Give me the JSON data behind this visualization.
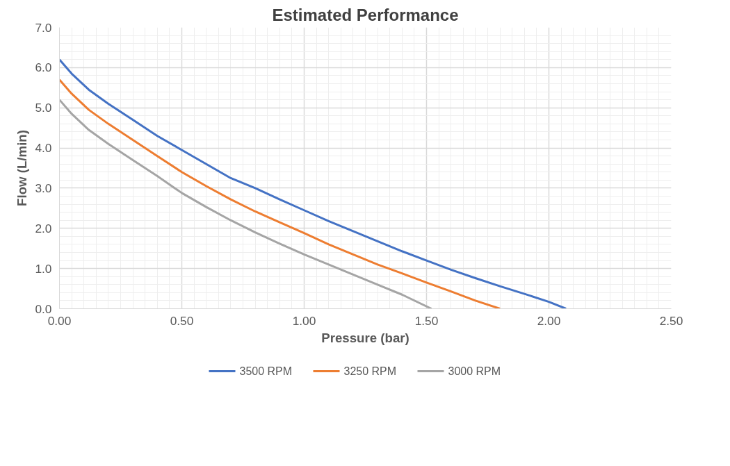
{
  "chart_data": {
    "type": "line",
    "title": "Estimated Performance",
    "xlabel": "Pressure (bar)",
    "ylabel": "Flow (L/min)",
    "xlim": [
      0,
      2.5
    ],
    "xticks": [
      {
        "value": 0,
        "label": "0.00"
      },
      {
        "value": 0.5,
        "label": "0.50"
      },
      {
        "value": 1,
        "label": "1.00"
      },
      {
        "value": 1.5,
        "label": "1.50"
      },
      {
        "value": 2,
        "label": "2.00"
      },
      {
        "value": 2.5,
        "label": "2.50"
      }
    ],
    "ylim": [
      0,
      7
    ],
    "yticks": [
      {
        "value": 0,
        "label": "0.0"
      },
      {
        "value": 1,
        "label": "1.0"
      },
      {
        "value": 2,
        "label": "2.0"
      },
      {
        "value": 3,
        "label": "3.0"
      },
      {
        "value": 4,
        "label": "4.0"
      },
      {
        "value": 5,
        "label": "5.0"
      },
      {
        "value": 6,
        "label": "6.0"
      },
      {
        "value": 7,
        "label": "7.0"
      }
    ],
    "grid": true,
    "legend": "bottom",
    "marker": "none",
    "line_style": "solid",
    "series": [
      {
        "name": "3500 RPM",
        "color": "#4472c4",
        "x": [
          0,
          0.05,
          0.12,
          0.2,
          0.3,
          0.4,
          0.5,
          0.6,
          0.7,
          0.8,
          0.9,
          1.0,
          1.1,
          1.2,
          1.3,
          1.4,
          1.5,
          1.6,
          1.7,
          1.8,
          1.9,
          2.0,
          2.07
        ],
        "values": [
          6.2,
          5.85,
          5.45,
          5.1,
          4.7,
          4.3,
          3.95,
          3.6,
          3.25,
          3.0,
          2.72,
          2.45,
          2.18,
          1.93,
          1.68,
          1.43,
          1.2,
          0.97,
          0.76,
          0.56,
          0.37,
          0.17,
          0
        ]
      },
      {
        "name": "3250 RPM",
        "color": "#ed7d31",
        "x": [
          0,
          0.05,
          0.12,
          0.2,
          0.3,
          0.4,
          0.5,
          0.6,
          0.7,
          0.8,
          0.9,
          1.0,
          1.1,
          1.2,
          1.3,
          1.4,
          1.5,
          1.6,
          1.7,
          1.8
        ],
        "values": [
          5.7,
          5.35,
          4.95,
          4.6,
          4.2,
          3.8,
          3.4,
          3.05,
          2.72,
          2.42,
          2.15,
          1.88,
          1.6,
          1.35,
          1.1,
          0.88,
          0.65,
          0.43,
          0.2,
          0
        ]
      },
      {
        "name": "3000 RPM",
        "color": "#a5a5a5",
        "x": [
          0,
          0.05,
          0.12,
          0.2,
          0.3,
          0.4,
          0.5,
          0.6,
          0.7,
          0.8,
          0.9,
          1.0,
          1.1,
          1.2,
          1.3,
          1.4,
          1.52
        ],
        "values": [
          5.2,
          4.85,
          4.45,
          4.1,
          3.7,
          3.3,
          2.88,
          2.53,
          2.2,
          1.9,
          1.62,
          1.35,
          1.1,
          0.85,
          0.6,
          0.35,
          0
        ]
      }
    ]
  }
}
